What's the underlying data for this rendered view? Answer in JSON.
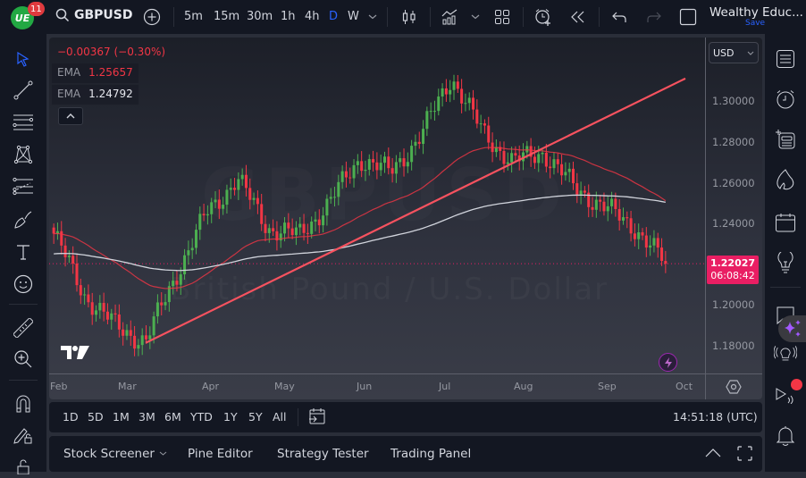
{
  "topbar": {
    "logo_text": "UE",
    "notification_count": "11",
    "symbol": "GBPUSD",
    "timeframes": [
      "5m",
      "15m",
      "30m",
      "1h",
      "4h",
      "D",
      "W"
    ],
    "active_timeframe": "D",
    "account_name": "Wealthy Educ...",
    "save_label": "Save"
  },
  "legend": {
    "change": "−0.00367 (−0.30%)",
    "ema1_label": "EMA",
    "ema1_value": "1.25657",
    "ema1_color": "#f23645",
    "ema2_label": "EMA",
    "ema2_value": "1.24792",
    "ema2_color": "#d1d4dc"
  },
  "watermark": {
    "symbol": "GBPUSD",
    "description": "British Pound / U.S. Dollar"
  },
  "price_scale": {
    "currency": "USD",
    "labels": [
      "1.30000",
      "1.28000",
      "1.26000",
      "1.24000",
      "1.20000",
      "1.18000"
    ],
    "last_price": "1.22027",
    "countdown": "06:08:42"
  },
  "time_axis": {
    "labels": [
      "Feb",
      "Mar",
      "Apr",
      "May",
      "Jun",
      "Jul",
      "Aug",
      "Sep",
      "Oct"
    ]
  },
  "range_bar": {
    "ranges": [
      "1D",
      "5D",
      "1M",
      "3M",
      "6M",
      "YTD",
      "1Y",
      "5Y",
      "All"
    ],
    "clock": "14:51:18 (UTC)"
  },
  "bottom_bar": {
    "tabs": [
      "Stock Screener",
      "Pine Editor",
      "Strategy Tester",
      "Trading Panel"
    ]
  },
  "colors": {
    "up": "#4caf50",
    "down": "#f23645",
    "accent": "#2962ff",
    "price_tag": "#e91e63",
    "trendline": "#f7525f"
  },
  "chart_data": {
    "type": "candlestick",
    "title": "GBPUSD, 1D",
    "xlabel": "",
    "ylabel": "Price (USD)",
    "x_ticks": [
      "Feb",
      "Mar",
      "Apr",
      "May",
      "Jun",
      "Jul",
      "Aug",
      "Sep",
      "Oct"
    ],
    "y_ticks": [
      1.18,
      1.2,
      1.24,
      1.26,
      1.28,
      1.3
    ],
    "ylim": [
      1.17,
      1.315
    ],
    "last_price": 1.22027,
    "approx_close_path": [
      {
        "month": "early Feb",
        "close": 1.235
      },
      {
        "month": "mid Feb",
        "close": 1.205
      },
      {
        "month": "early Mar",
        "close": 1.19
      },
      {
        "month": "mid Mar (low)",
        "close": 1.182
      },
      {
        "month": "late Mar",
        "close": 1.215
      },
      {
        "month": "mid Apr",
        "close": 1.245
      },
      {
        "month": "early May",
        "close": 1.262
      },
      {
        "month": "mid May",
        "close": 1.238
      },
      {
        "month": "late May",
        "close": 1.234
      },
      {
        "month": "early Jun",
        "close": 1.25
      },
      {
        "month": "mid Jun",
        "close": 1.272
      },
      {
        "month": "late Jun",
        "close": 1.265
      },
      {
        "month": "early Jul",
        "close": 1.283
      },
      {
        "month": "mid Jul (high)",
        "close": 1.312
      },
      {
        "month": "late Jul",
        "close": 1.285
      },
      {
        "month": "early Aug",
        "close": 1.27
      },
      {
        "month": "mid Aug",
        "close": 1.275
      },
      {
        "month": "late Aug",
        "close": 1.258
      },
      {
        "month": "early Sep",
        "close": 1.248
      },
      {
        "month": "mid Sep",
        "close": 1.238
      },
      {
        "month": "late Sep",
        "close": 1.22027
      }
    ],
    "series": [
      {
        "name": "EMA (red)",
        "last": 1.25657
      },
      {
        "name": "EMA (white)",
        "last": 1.24792
      }
    ],
    "annotations": [
      {
        "type": "trendline",
        "from": {
          "x": "mid Mar",
          "y": 1.182
        },
        "to": {
          "x": "late Sep",
          "y": 1.31
        }
      }
    ],
    "horizontal_line": 1.22027
  }
}
